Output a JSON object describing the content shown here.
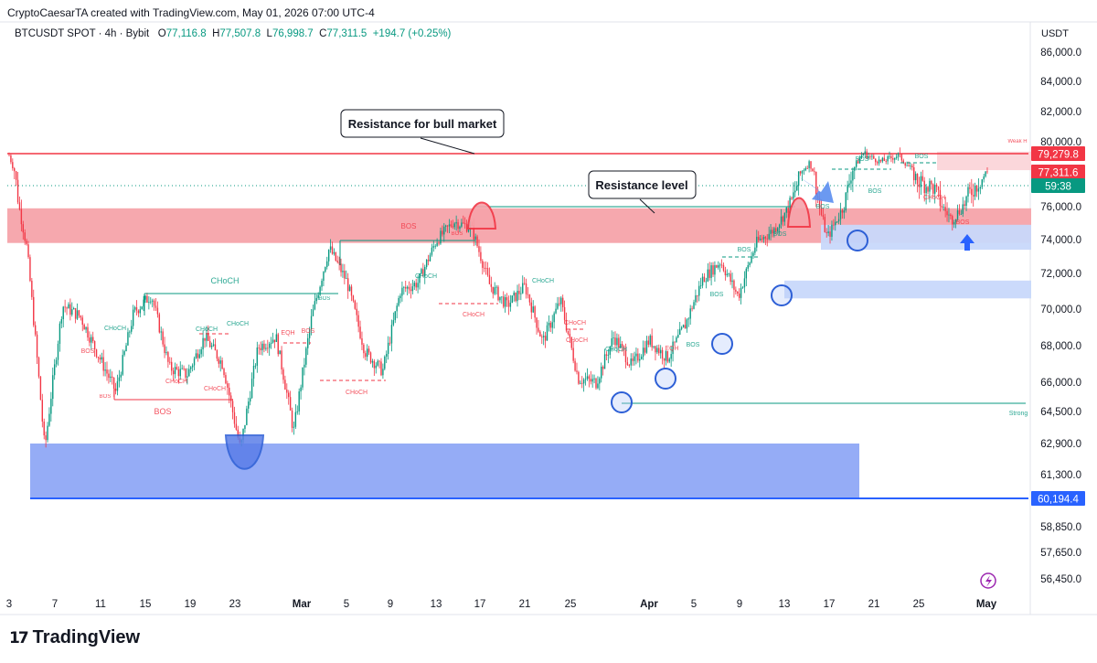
{
  "header": {
    "attribution": "CryptoCaesarTA created with TradingView.com, May 01, 2026 07:00 UTC-4",
    "symbol": "BTCUSDT SPOT · 4h · Bybit",
    "o_label": "O",
    "o_value": "77,116.8",
    "h_label": "H",
    "h_value": "77,507.8",
    "l_label": "L",
    "l_value": "76,998.7",
    "c_label": "C",
    "c_value": "77,311.5",
    "change": "+194.7 (+0.25%)"
  },
  "axis": {
    "currency": "USDT"
  },
  "logo": {
    "text": "TradingView",
    "mark": "17"
  },
  "colors": {
    "up": "#089981",
    "down": "#f23645",
    "red_zone": "#f6a3aa",
    "blue_zone": "#8fa8f5",
    "light_blue_zone": "#c8d8fb",
    "blue_circle": "#2d5fd6",
    "resistance_line": "#f23645"
  },
  "chart_data": {
    "type": "candlestick",
    "y_unit": "USDT",
    "y_ticks": [
      "86,000.0",
      "84,000.0",
      "82,000.0",
      "80,000.0",
      "76,000.0",
      "74,000.0",
      "72,000.0",
      "70,000.0",
      "68,000.0",
      "66,000.0",
      "64,500.0",
      "62,900.0",
      "61,300.0",
      "58,850.0",
      "57,650.0",
      "56,450.0"
    ],
    "x_ticks": [
      "3",
      "7",
      "11",
      "15",
      "19",
      "23",
      "Mar",
      "5",
      "9",
      "13",
      "17",
      "21",
      "25",
      "Apr",
      "5",
      "9",
      "13",
      "17",
      "21",
      "25",
      "May"
    ],
    "price_tags": [
      {
        "label": "79,279.8",
        "value": 79279.8,
        "color": "#f23645"
      },
      {
        "label": "77,311.6",
        "value": 77311.6,
        "color": "#f23645"
      },
      {
        "label": "59:38",
        "value": 77000,
        "color": "#089981"
      },
      {
        "label": "60,194.4",
        "value": 60194.4,
        "color": "#2962ff"
      }
    ],
    "callouts": [
      {
        "text": "Resistance for bull market"
      },
      {
        "text": "Resistance level"
      }
    ],
    "zones": [
      {
        "name": "resistance-zone",
        "from": 73800,
        "to": 75900,
        "color": "red"
      },
      {
        "name": "demand-zone-large",
        "from": 60194.4,
        "to": 62900,
        "color": "blue"
      },
      {
        "name": "demand-zone-1",
        "from": 73400,
        "to": 74900,
        "color": "light-blue"
      },
      {
        "name": "demand-zone-2",
        "from": 70600,
        "to": 71600,
        "color": "light-blue"
      },
      {
        "name": "weak-high-zone",
        "from": 77500,
        "to": 79400,
        "color": "light-red"
      }
    ],
    "resistance_line": 79279.8,
    "small_labels": [
      {
        "text": "BOS",
        "color": "#f23645"
      },
      {
        "text": "BOS",
        "color": "#089981"
      },
      {
        "text": "CHoCH",
        "color": "#089981"
      },
      {
        "text": "CHoCH",
        "color": "#f23645"
      },
      {
        "text": "EQH",
        "color": "#f23645"
      },
      {
        "text": "Weak H",
        "color": "#f23645"
      },
      {
        "text": "Strong",
        "color": "#089981"
      }
    ],
    "price_path": [
      [
        "3",
        79100
      ],
      [
        "4",
        73500
      ],
      [
        "5",
        62600
      ],
      [
        "6",
        70200
      ],
      [
        "7",
        69600
      ],
      [
        "9",
        67500
      ],
      [
        "11",
        65500
      ],
      [
        "13",
        69800
      ],
      [
        "15",
        70800
      ],
      [
        "17",
        66800
      ],
      [
        "19",
        66400
      ],
      [
        "21",
        68500
      ],
      [
        "22",
        67000
      ],
      [
        "23",
        62600
      ],
      [
        "25",
        67900
      ],
      [
        "27",
        68500
      ],
      [
        "Mar 1",
        63500
      ],
      [
        "3",
        69500
      ],
      [
        "4",
        73500
      ],
      [
        "5",
        71500
      ],
      [
        "7",
        67700
      ],
      [
        "9",
        66600
      ],
      [
        "11",
        71000
      ],
      [
        "13",
        71500
      ],
      [
        "15",
        73900
      ],
      [
        "16",
        75100
      ],
      [
        "17",
        74700
      ],
      [
        "18",
        71400
      ],
      [
        "21",
        70200
      ],
      [
        "23",
        71300
      ],
      [
        "25",
        68200
      ],
      [
        "27",
        70500
      ],
      [
        "29",
        66200
      ],
      [
        "Mar 31",
        66000
      ],
      [
        "Apr 2",
        68500
      ],
      [
        "4",
        66900
      ],
      [
        "5",
        68300
      ],
      [
        "7",
        67300
      ],
      [
        "8",
        69100
      ],
      [
        "9",
        71700
      ],
      [
        "11",
        72700
      ],
      [
        "12",
        70700
      ],
      [
        "13",
        73800
      ],
      [
        "15",
        74600
      ],
      [
        "17",
        76200
      ],
      [
        "18",
        78300
      ],
      [
        "20",
        74100
      ],
      [
        "21",
        76200
      ],
      [
        "22",
        79300
      ],
      [
        "25",
        78400
      ],
      [
        "26",
        79100
      ],
      [
        "27",
        77000
      ],
      [
        "28",
        76700
      ],
      [
        "29",
        75200
      ],
      [
        "30",
        76500
      ],
      [
        "May 1",
        77300
      ]
    ]
  }
}
